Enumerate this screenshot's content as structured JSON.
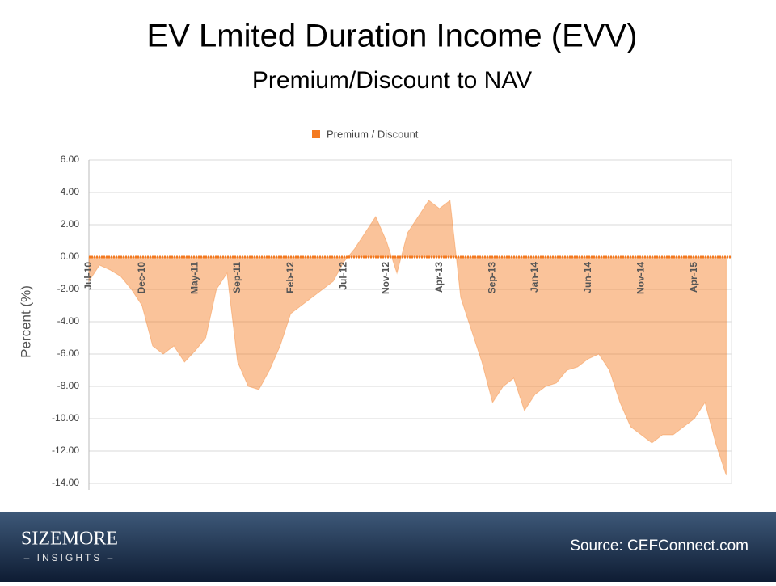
{
  "header": {
    "title": "EV Lmited Duration Income (EVV)",
    "subtitle": "Premium/Discount to NAV"
  },
  "chart_data": {
    "type": "area",
    "ylabel": "Percent (%)",
    "categories": [
      "Jul-10",
      null,
      null,
      null,
      null,
      "Dec-10",
      null,
      null,
      null,
      null,
      "May-11",
      null,
      null,
      null,
      "Sep-11",
      null,
      null,
      null,
      null,
      "Feb-12",
      null,
      null,
      null,
      null,
      "Jul-12",
      null,
      null,
      null,
      "Nov-12",
      null,
      null,
      null,
      null,
      "Apr-13",
      null,
      null,
      null,
      null,
      "Sep-13",
      null,
      null,
      null,
      "Jan-14",
      null,
      null,
      null,
      null,
      "Jun-14",
      null,
      null,
      null,
      null,
      "Nov-14",
      null,
      null,
      null,
      null,
      "Apr-15",
      null,
      null,
      null
    ],
    "series": [
      {
        "name": "Premium / Discount",
        "color": "#f47a20",
        "values": [
          -1.5,
          -0.5,
          -0.8,
          -1.2,
          -2.0,
          -3.0,
          -5.5,
          -6.0,
          -5.5,
          -6.5,
          -5.8,
          -5.0,
          -2.0,
          -1.0,
          -6.5,
          -8.0,
          -8.2,
          -7.0,
          -5.5,
          -3.5,
          -3.0,
          -2.5,
          -2.0,
          -1.5,
          -0.3,
          0.5,
          1.5,
          2.5,
          1.0,
          -1.0,
          1.5,
          2.5,
          3.5,
          3.0,
          3.5,
          -2.5,
          -4.5,
          -6.5,
          -9.0,
          -8.0,
          -7.5,
          -9.5,
          -8.5,
          -8.0,
          -7.8,
          -7.0,
          -6.8,
          -6.3,
          -6.0,
          -7.0,
          -9.0,
          -10.5,
          -11.0,
          -11.5,
          -11.0,
          -11.0,
          -10.5,
          -10.0,
          -9.0,
          -11.5,
          -13.5
        ]
      }
    ],
    "ylim": [
      -14,
      6
    ],
    "yticks": [
      {
        "value": 6,
        "label": "6.00"
      },
      {
        "value": 4,
        "label": "4.00"
      },
      {
        "value": 2,
        "label": "2.00"
      },
      {
        "value": 0,
        "label": "0.00"
      },
      {
        "value": -2,
        "label": "-2.00"
      },
      {
        "value": -4,
        "label": "-4.00"
      },
      {
        "value": -6,
        "label": "-6.00"
      },
      {
        "value": -8,
        "label": "-8.00"
      },
      {
        "value": -10,
        "label": "-10.00"
      },
      {
        "value": -12,
        "label": "-12.00"
      },
      {
        "value": -14,
        "label": "-14.00"
      }
    ],
    "grid": true,
    "legend": "top"
  },
  "footer": {
    "logo": "SIZEMORE",
    "tagline": "– INSIGHTS –",
    "source": "Source: CEFConnect.com"
  }
}
